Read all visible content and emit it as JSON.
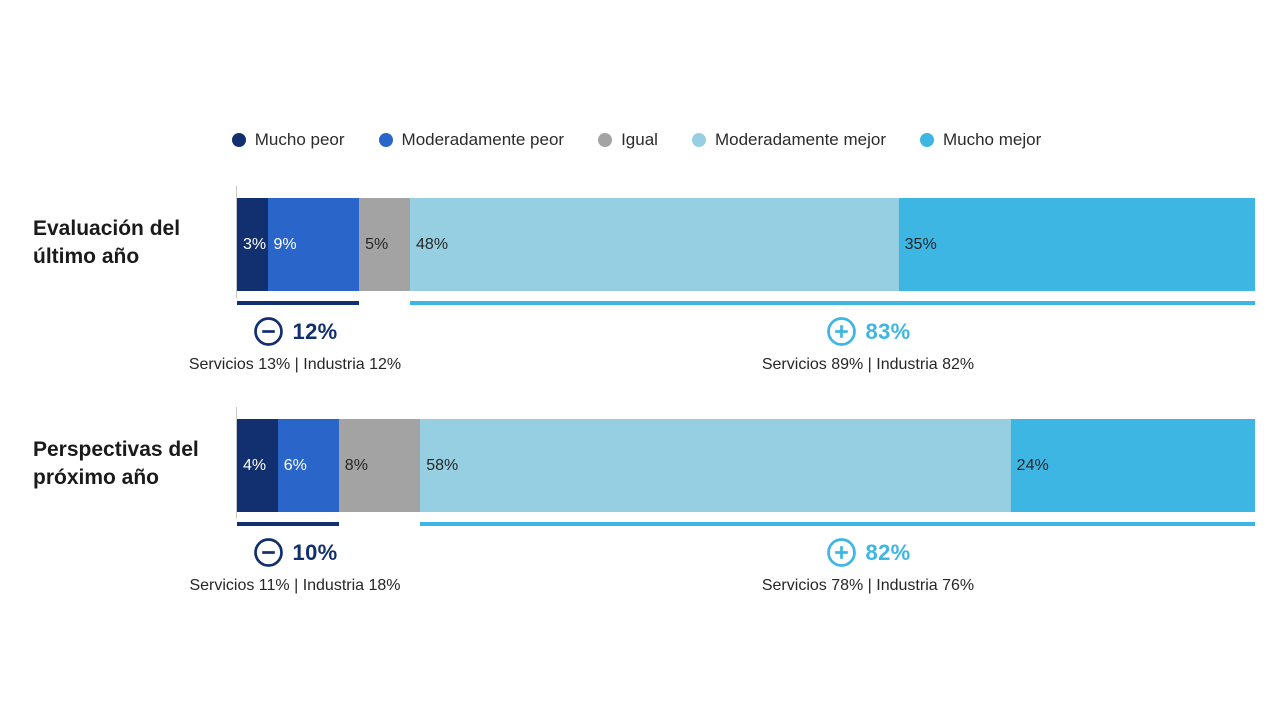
{
  "legend": {
    "position": "top",
    "items": [
      {
        "label": "Mucho peor",
        "color": "#12306f"
      },
      {
        "label": "Moderadamente peor",
        "color": "#2a65c9"
      },
      {
        "label": "Igual",
        "color": "#a3a3a3"
      },
      {
        "label": "Moderadamente mejor",
        "color": "#96cfe2"
      },
      {
        "label": "Mucho mejor",
        "color": "#3db6e3"
      }
    ]
  },
  "colors": {
    "negative_accent": "#12306f",
    "positive_accent": "#3db6e3",
    "axis_line": "#c9c9c9"
  },
  "chart_data": {
    "type": "bar",
    "variant": "horizontal-stacked-100pct-diverging",
    "xlim": [
      0,
      100
    ],
    "grid": false,
    "legend_position": "top",
    "categories": [
      "Mucho peor",
      "Moderadamente peor",
      "Igual",
      "Moderadamente mejor",
      "Mucho mejor"
    ],
    "rows": [
      {
        "title": "Evaluación del\núltimo año",
        "segments": [
          {
            "category": "Mucho peor",
            "value": 3,
            "label": "3%",
            "color": "#12306f"
          },
          {
            "category": "Moderadamente peor",
            "value": 9,
            "label": "9%",
            "color": "#2a65c9"
          },
          {
            "category": "Igual",
            "value": 5,
            "label": "5%",
            "color": "#a3a3a3"
          },
          {
            "category": "Moderadamente mejor",
            "value": 48,
            "label": "48%",
            "color": "#96cfe2"
          },
          {
            "category": "Mucho mejor",
            "value": 35,
            "label": "35%",
            "color": "#3db6e3"
          }
        ],
        "negative": {
          "value": 12,
          "label": "12%",
          "breakdown": "Servicios 13% | Industria 12%"
        },
        "positive": {
          "value": 83,
          "label": "83%",
          "breakdown": "Servicios 89% | Industria 82%"
        }
      },
      {
        "title": "Perspectivas del\npróximo año",
        "segments": [
          {
            "category": "Mucho peor",
            "value": 4,
            "label": "4%",
            "color": "#12306f"
          },
          {
            "category": "Moderadamente peor",
            "value": 6,
            "label": "6%",
            "color": "#2a65c9"
          },
          {
            "category": "Igual",
            "value": 8,
            "label": "8%",
            "color": "#a3a3a3"
          },
          {
            "category": "Moderadamente mejor",
            "value": 58,
            "label": "58%",
            "color": "#96cfe2"
          },
          {
            "category": "Mucho mejor",
            "value": 24,
            "label": "24%",
            "color": "#3db6e3"
          }
        ],
        "negative": {
          "value": 10,
          "label": "10%",
          "breakdown": "Servicios 11% | Industria 18%"
        },
        "positive": {
          "value": 82,
          "label": "82%",
          "breakdown": "Servicios 78% | Industria 76%"
        }
      }
    ]
  }
}
